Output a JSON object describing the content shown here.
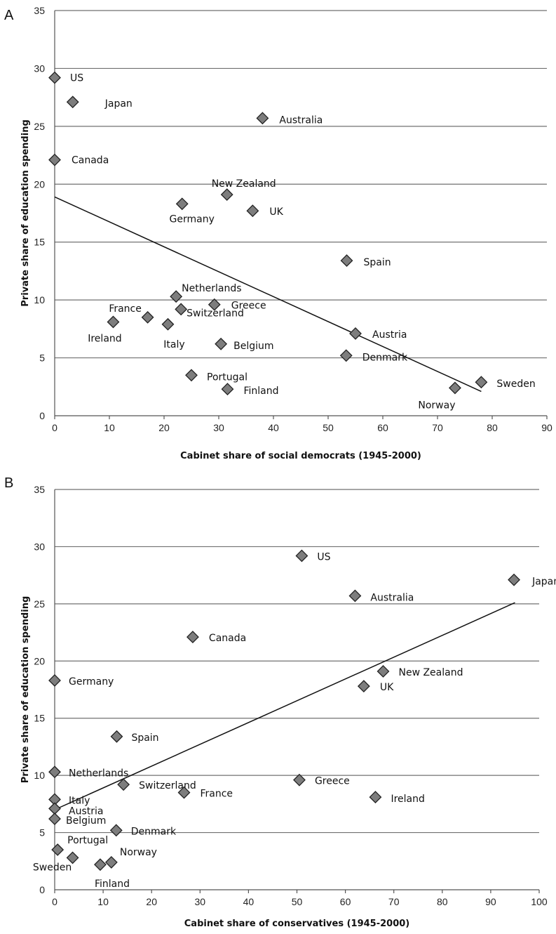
{
  "chart_data": [
    {
      "type": "scatter",
      "panel": "A",
      "xlabel": "Cabinet share of social democrats (1945-2000)",
      "ylabel": "Private share of education spending",
      "xlim": [
        0,
        90
      ],
      "ylim": [
        0,
        35
      ],
      "xticks": [
        0,
        10,
        20,
        30,
        40,
        50,
        60,
        70,
        80,
        90
      ],
      "yticks": [
        0,
        5,
        10,
        15,
        20,
        25,
        30,
        35
      ],
      "grid": "horizontal",
      "points": [
        {
          "label": "US",
          "x": 0,
          "y": 29.2
        },
        {
          "label": "Japan",
          "x": 3.3,
          "y": 27.1
        },
        {
          "label": "Australia",
          "x": 38,
          "y": 25.7
        },
        {
          "label": "Canada",
          "x": 0,
          "y": 22.1
        },
        {
          "label": "New Zealand",
          "x": 31.5,
          "y": 19.1
        },
        {
          "label": "Germany",
          "x": 23.3,
          "y": 18.3
        },
        {
          "label": "UK",
          "x": 36.2,
          "y": 17.7
        },
        {
          "label": "Spain",
          "x": 53.4,
          "y": 13.4
        },
        {
          "label": "Netherlands",
          "x": 22.2,
          "y": 10.3
        },
        {
          "label": "Greece",
          "x": 29.2,
          "y": 9.6
        },
        {
          "label": "Switzerland",
          "x": 23.1,
          "y": 9.2
        },
        {
          "label": "France",
          "x": 17,
          "y": 8.5
        },
        {
          "label": "Ireland",
          "x": 10.7,
          "y": 8.1
        },
        {
          "label": "Italy",
          "x": 20.7,
          "y": 7.9
        },
        {
          "label": "Austria",
          "x": 55,
          "y": 7.1
        },
        {
          "label": "Belgium",
          "x": 30.4,
          "y": 6.2
        },
        {
          "label": "Denmark",
          "x": 53.3,
          "y": 5.2
        },
        {
          "label": "Portugal",
          "x": 25,
          "y": 3.5
        },
        {
          "label": "Sweden",
          "x": 78,
          "y": 2.9
        },
        {
          "label": "Norway",
          "x": 73.2,
          "y": 2.4
        },
        {
          "label": "Finland",
          "x": 31.6,
          "y": 2.3
        }
      ],
      "trendline": {
        "x": [
          0,
          78
        ],
        "y": [
          18.9,
          2.1
        ]
      }
    },
    {
      "type": "scatter",
      "panel": "B",
      "xlabel": "Cabinet share of conservatives (1945-2000)",
      "ylabel": "Private share of education spending",
      "xlim": [
        0,
        100
      ],
      "ylim": [
        0,
        35
      ],
      "xticks": [
        0,
        10,
        20,
        30,
        40,
        50,
        60,
        70,
        80,
        90,
        100
      ],
      "yticks": [
        0,
        5,
        10,
        15,
        20,
        25,
        30,
        35
      ],
      "grid": "horizontal",
      "points": [
        {
          "label": "US",
          "x": 51,
          "y": 29.2
        },
        {
          "label": "Japan",
          "x": 94.8,
          "y": 27.1
        },
        {
          "label": "Australia",
          "x": 62,
          "y": 25.7
        },
        {
          "label": "Canada",
          "x": 28.5,
          "y": 22.1
        },
        {
          "label": "Germany",
          "x": 0,
          "y": 18.3
        },
        {
          "label": "New Zealand",
          "x": 67.8,
          "y": 19.1
        },
        {
          "label": "UK",
          "x": 63.8,
          "y": 17.8
        },
        {
          "label": "Spain",
          "x": 12.8,
          "y": 13.4
        },
        {
          "label": "Netherlands",
          "x": 0,
          "y": 10.3
        },
        {
          "label": "Switzerland",
          "x": 14.2,
          "y": 9.2
        },
        {
          "label": "France",
          "x": 26.7,
          "y": 8.5
        },
        {
          "label": "Greece",
          "x": 50.5,
          "y": 9.6
        },
        {
          "label": "Ireland",
          "x": 66.2,
          "y": 8.1
        },
        {
          "label": "Italy",
          "x": 0,
          "y": 7.9
        },
        {
          "label": "Austria",
          "x": 0,
          "y": 7.1
        },
        {
          "label": "Belgium",
          "x": 0,
          "y": 6.2
        },
        {
          "label": "Denmark",
          "x": 12.7,
          "y": 5.2
        },
        {
          "label": "Portugal",
          "x": 0.6,
          "y": 3.5
        },
        {
          "label": "Sweden",
          "x": 3.7,
          "y": 2.8
        },
        {
          "label": "Norway",
          "x": 11.7,
          "y": 2.4
        },
        {
          "label": "Finland",
          "x": 9.4,
          "y": 2.2
        }
      ],
      "trendline": {
        "x": [
          0,
          95
        ],
        "y": [
          7.0,
          25.1
        ]
      }
    }
  ]
}
